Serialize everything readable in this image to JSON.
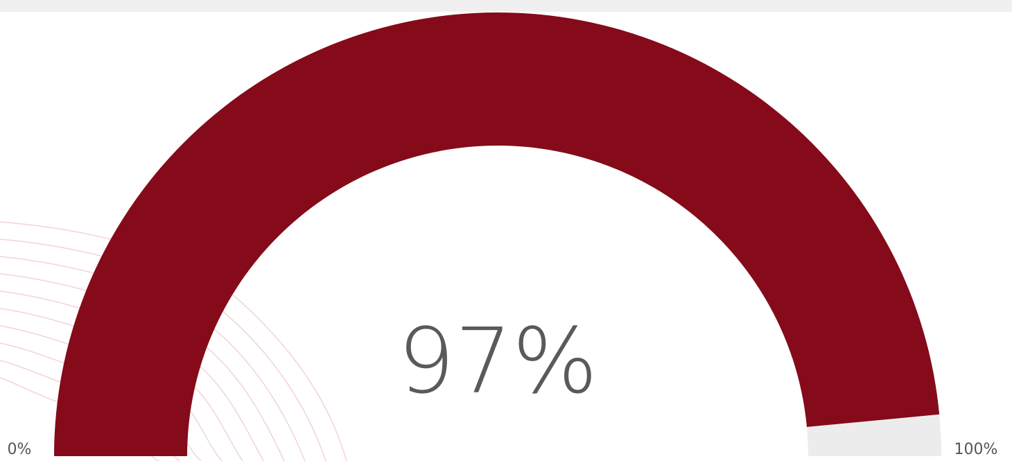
{
  "chart_data": {
    "type": "gauge",
    "values": [
      97
    ],
    "value_labels": [
      "97%"
    ],
    "color": "#850b1a",
    "track_color": "#ececec",
    "ylim": [
      0,
      100
    ],
    "yticks": [
      {
        "value": 0,
        "label": "0%"
      },
      {
        "value": 100,
        "label": "100%"
      }
    ]
  }
}
